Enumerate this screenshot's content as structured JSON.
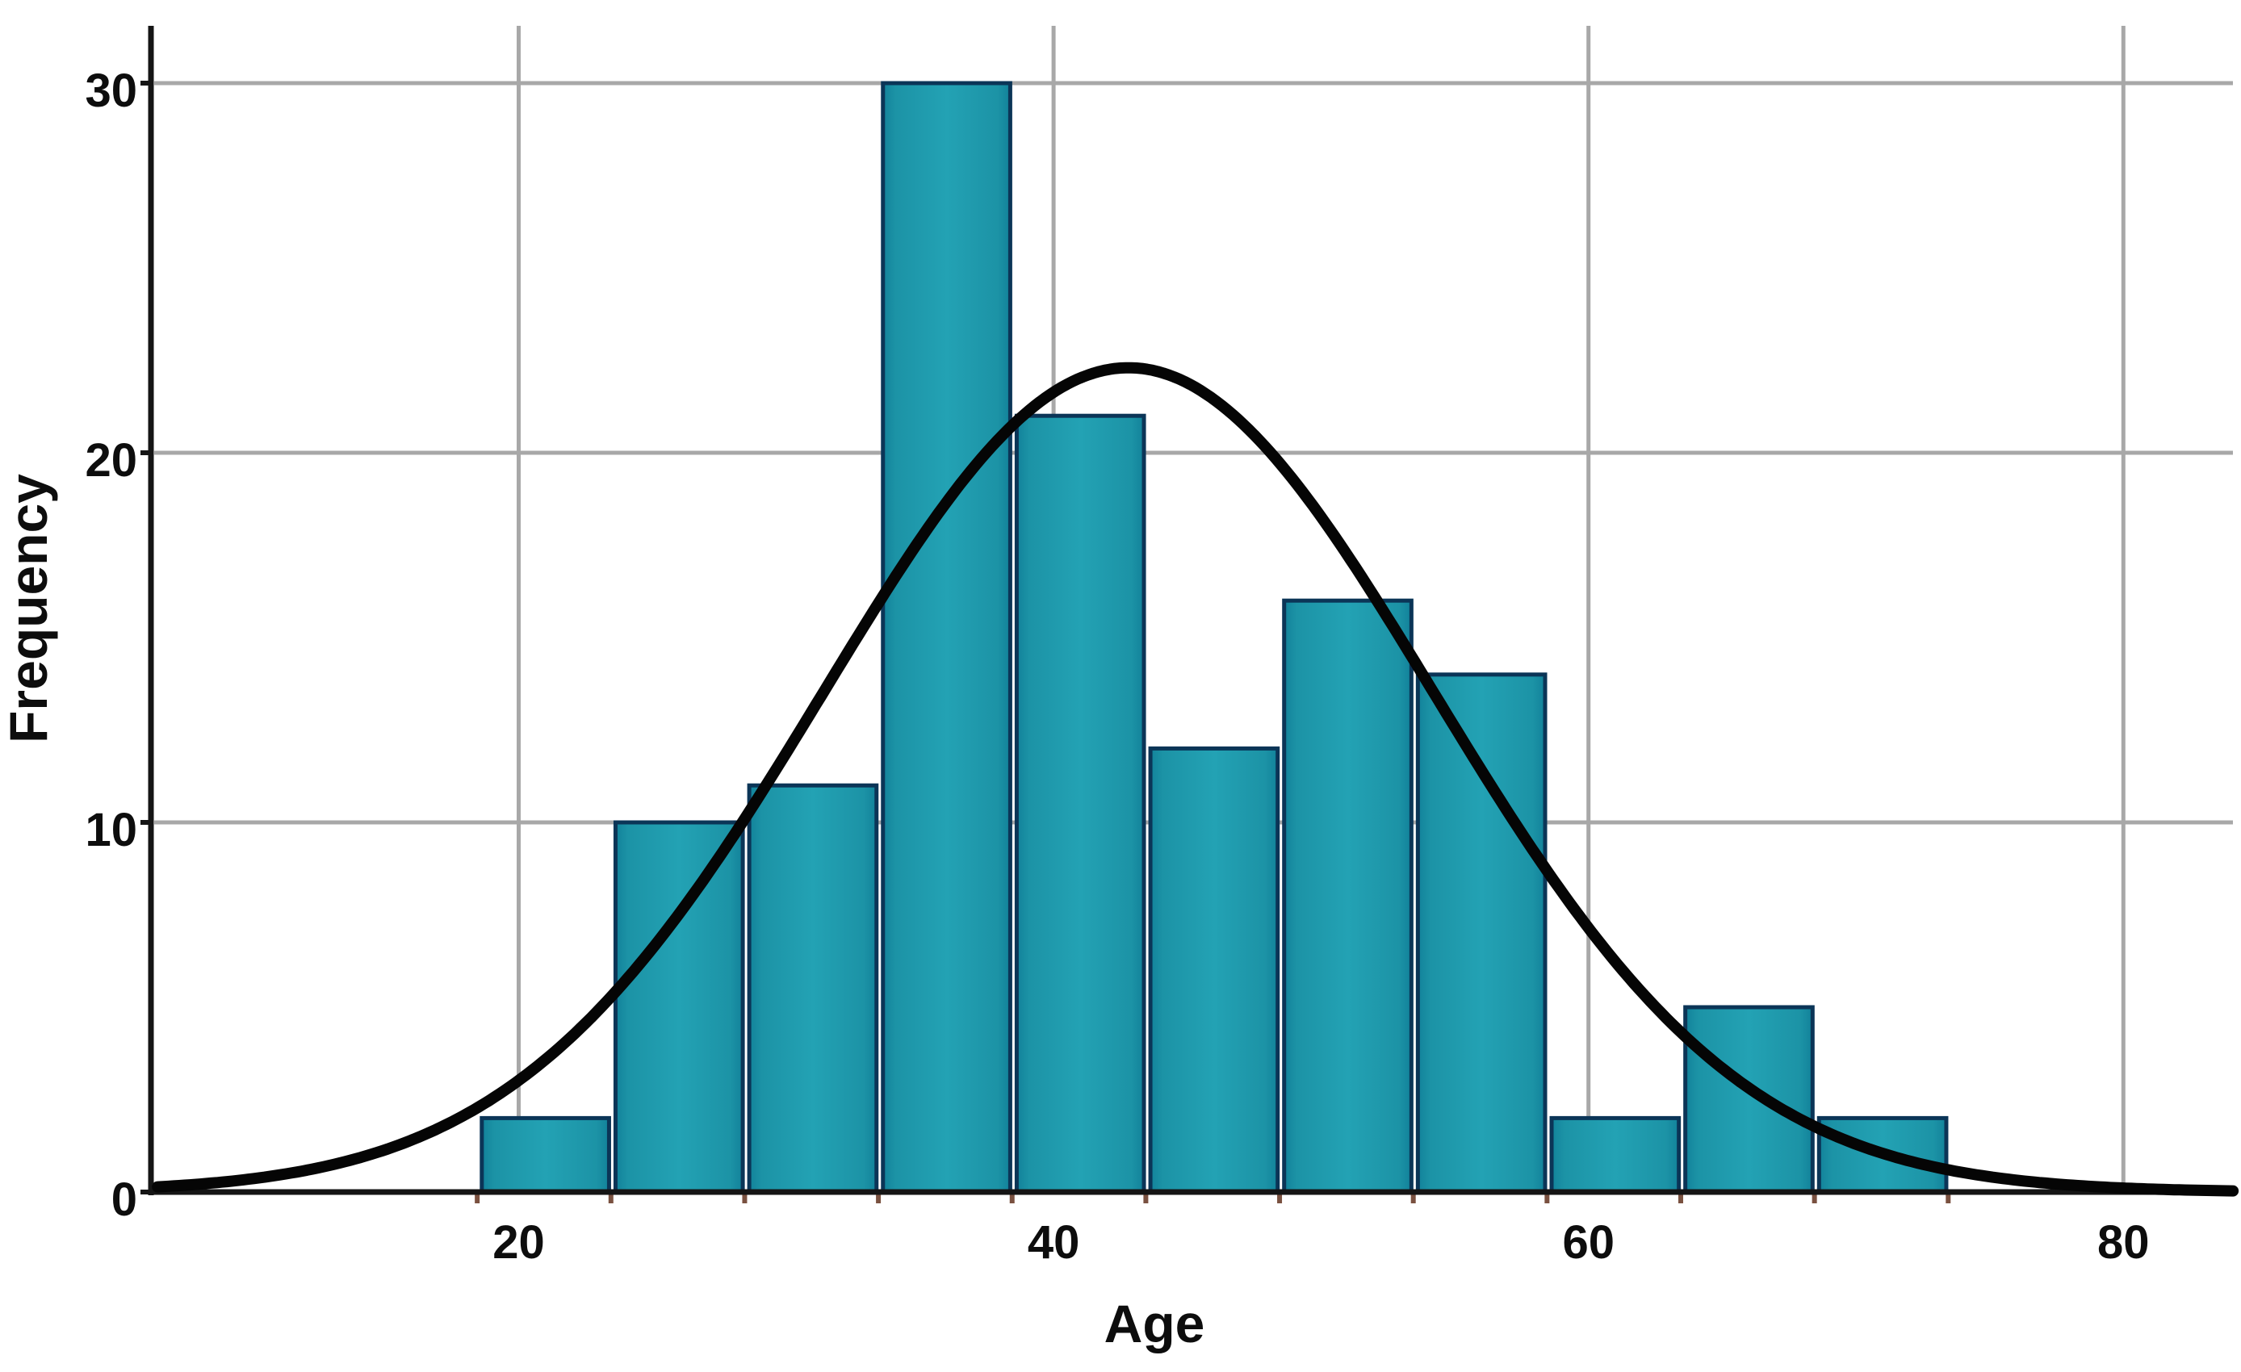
{
  "chart_data": {
    "type": "bar",
    "subtype": "histogram-with-normal-curve",
    "title": "",
    "xlabel": "Age",
    "ylabel": "Frequency",
    "x_tick_values": [
      20,
      40,
      60,
      80
    ],
    "x_tick_labels": [
      "20",
      "40",
      "60",
      "80"
    ],
    "y_tick_values": [
      0,
      10,
      20,
      30
    ],
    "y_tick_labels": [
      "0",
      "10",
      "20",
      "30"
    ],
    "xlim": [
      6.5,
      84.2
    ],
    "ylim": [
      0,
      31.5
    ],
    "grid": true,
    "legend": "none",
    "bins": {
      "bin_width": 5,
      "bin_start": 18.45,
      "centers": [
        21,
        26,
        31,
        36,
        41,
        46,
        51,
        56,
        61,
        66,
        71
      ],
      "frequencies": [
        2,
        10,
        11,
        30,
        21,
        12,
        16,
        14,
        2,
        5,
        2
      ]
    },
    "normal_curve": {
      "mean": 42.8,
      "sd": 11.4,
      "peak_height": 22.3
    },
    "colors": {
      "bar_fill": "#1E98AA",
      "bar_fill_edge": "#12829A",
      "bar_border": "#0B3557",
      "curve": "#050505",
      "gridline": "#A8A8A8",
      "axis": "#151515",
      "bin_tick": "#7A5140",
      "text": "#0d0d0d",
      "background": "#FFFFFF"
    }
  }
}
